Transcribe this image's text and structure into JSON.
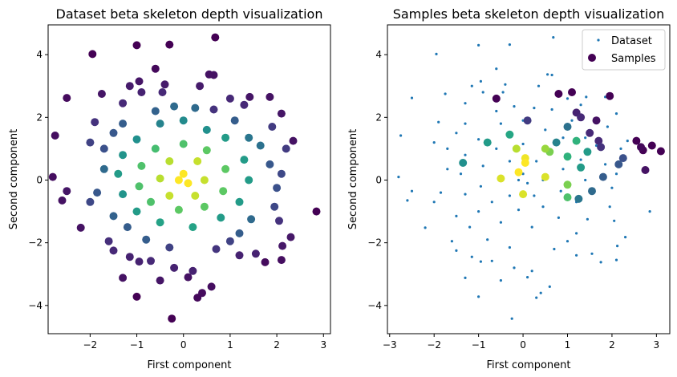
{
  "chart_data": [
    {
      "type": "scatter",
      "title": "Dataset beta skeleton depth visualization",
      "xlabel": "First component",
      "ylabel": "Second component",
      "xlim": [
        -2.9,
        3.15
      ],
      "ylim": [
        -4.9,
        4.95
      ],
      "xticks": [
        "−2",
        "−1",
        "0",
        "1",
        "2",
        "3"
      ],
      "xtick_values": [
        -2,
        -1,
        0,
        1,
        2,
        3
      ],
      "yticks": [
        "−4",
        "−2",
        "0",
        "2",
        "4"
      ],
      "ytick_values": [
        -4,
        -2,
        0,
        2,
        4
      ],
      "colormap": "viridis",
      "colorscale_note": "point color encodes beta skeleton depth (dark purple = low, yellow = high)",
      "series": [
        {
          "points": [
            {
              "x": -1.0,
              "y": 4.3,
              "depth": 0.0
            },
            {
              "x": -1.95,
              "y": 4.02,
              "depth": 0.0
            },
            {
              "x": -0.3,
              "y": 4.32,
              "depth": 0.0
            },
            {
              "x": 0.68,
              "y": 4.55,
              "depth": 0.0
            },
            {
              "x": -0.6,
              "y": 3.55,
              "depth": 0.02
            },
            {
              "x": 0.55,
              "y": 3.37,
              "depth": 0.05
            },
            {
              "x": 0.65,
              "y": 3.35,
              "depth": 0.05
            },
            {
              "x": -2.5,
              "y": 2.62,
              "depth": 0.03
            },
            {
              "x": -1.75,
              "y": 2.75,
              "depth": 0.06
            },
            {
              "x": -2.75,
              "y": 1.42,
              "depth": 0.04
            },
            {
              "x": 1.85,
              "y": 2.65,
              "depth": 0.05
            },
            {
              "x": 1.42,
              "y": 2.65,
              "depth": 0.06
            },
            {
              "x": 2.35,
              "y": 1.25,
              "depth": 0.05
            },
            {
              "x": 2.1,
              "y": 2.12,
              "depth": 0.06
            },
            {
              "x": 2.85,
              "y": -1.0,
              "depth": 0.0
            },
            {
              "x": -2.8,
              "y": 0.1,
              "depth": 0.04
            },
            {
              "x": -2.6,
              "y": -0.65,
              "depth": 0.05
            },
            {
              "x": -2.5,
              "y": -0.35,
              "depth": 0.06
            },
            {
              "x": -2.2,
              "y": -1.52,
              "depth": 0.05
            },
            {
              "x": 2.3,
              "y": -1.82,
              "depth": 0.07
            },
            {
              "x": 2.12,
              "y": -2.1,
              "depth": 0.07
            },
            {
              "x": 1.75,
              "y": -2.62,
              "depth": 0.03
            },
            {
              "x": 2.1,
              "y": -2.55,
              "depth": 0.04
            },
            {
              "x": -1.0,
              "y": -3.72,
              "depth": 0.0
            },
            {
              "x": -0.25,
              "y": -4.42,
              "depth": 0.0
            },
            {
              "x": 0.3,
              "y": -3.75,
              "depth": 0.02
            },
            {
              "x": 0.4,
              "y": -3.6,
              "depth": 0.03
            },
            {
              "x": 0.6,
              "y": -3.4,
              "depth": 0.04
            },
            {
              "x": 0.1,
              "y": -3.1,
              "depth": 0.05
            },
            {
              "x": -0.5,
              "y": -3.2,
              "depth": 0.06
            },
            {
              "x": -1.3,
              "y": -3.12,
              "depth": 0.05
            },
            {
              "x": -1.15,
              "y": -2.45,
              "depth": 0.1
            },
            {
              "x": -0.95,
              "y": -2.6,
              "depth": 0.1
            },
            {
              "x": -0.7,
              "y": -2.58,
              "depth": 0.12
            },
            {
              "x": -0.2,
              "y": -2.8,
              "depth": 0.1
            },
            {
              "x": 0.2,
              "y": -2.9,
              "depth": 0.1
            },
            {
              "x": 1.2,
              "y": -2.4,
              "depth": 0.1
            },
            {
              "x": 1.55,
              "y": -2.35,
              "depth": 0.1
            },
            {
              "x": -1.6,
              "y": -1.95,
              "depth": 0.14
            },
            {
              "x": -1.5,
              "y": -2.25,
              "depth": 0.12
            },
            {
              "x": -0.3,
              "y": -2.15,
              "depth": 0.2
            },
            {
              "x": 0.7,
              "y": -2.2,
              "depth": 0.16
            },
            {
              "x": 1.0,
              "y": -1.95,
              "depth": 0.2
            },
            {
              "x": -1.3,
              "y": 2.45,
              "depth": 0.12
            },
            {
              "x": -0.9,
              "y": 2.8,
              "depth": 0.1
            },
            {
              "x": -0.45,
              "y": 2.8,
              "depth": 0.12
            },
            {
              "x": -0.4,
              "y": 3.05,
              "depth": 0.08
            },
            {
              "x": -0.95,
              "y": 3.15,
              "depth": 0.06
            },
            {
              "x": -1.15,
              "y": 3.0,
              "depth": 0.08
            },
            {
              "x": 0.35,
              "y": 3.0,
              "depth": 0.08
            },
            {
              "x": 0.65,
              "y": 2.25,
              "depth": 0.15
            },
            {
              "x": 1.0,
              "y": 2.6,
              "depth": 0.12
            },
            {
              "x": 1.3,
              "y": 2.4,
              "depth": 0.12
            },
            {
              "x": -1.9,
              "y": 1.85,
              "depth": 0.15
            },
            {
              "x": -2.0,
              "y": 1.2,
              "depth": 0.2
            },
            {
              "x": -1.7,
              "y": 1.0,
              "depth": 0.25
            },
            {
              "x": 1.9,
              "y": 1.7,
              "depth": 0.18
            },
            {
              "x": 2.2,
              "y": 1.0,
              "depth": 0.18
            },
            {
              "x": 1.85,
              "y": 0.5,
              "depth": 0.28
            },
            {
              "x": 2.1,
              "y": 0.2,
              "depth": 0.22
            },
            {
              "x": 2.0,
              "y": -0.25,
              "depth": 0.25
            },
            {
              "x": 1.95,
              "y": -0.85,
              "depth": 0.22
            },
            {
              "x": 2.05,
              "y": -1.3,
              "depth": 0.15
            },
            {
              "x": -2.0,
              "y": -0.7,
              "depth": 0.22
            },
            {
              "x": -1.85,
              "y": -0.4,
              "depth": 0.28
            },
            {
              "x": -1.7,
              "y": 0.35,
              "depth": 0.35
            },
            {
              "x": -1.5,
              "y": 1.5,
              "depth": 0.28
            },
            {
              "x": -1.3,
              "y": 1.8,
              "depth": 0.3
            },
            {
              "x": -0.6,
              "y": 2.2,
              "depth": 0.32
            },
            {
              "x": -0.2,
              "y": 2.35,
              "depth": 0.35
            },
            {
              "x": 0.25,
              "y": 2.3,
              "depth": 0.35
            },
            {
              "x": 1.1,
              "y": 1.9,
              "depth": 0.3
            },
            {
              "x": 1.4,
              "y": 1.35,
              "depth": 0.4
            },
            {
              "x": 1.65,
              "y": 1.1,
              "depth": 0.38
            },
            {
              "x": 1.45,
              "y": -1.25,
              "depth": 0.35
            },
            {
              "x": 1.2,
              "y": -1.7,
              "depth": 0.3
            },
            {
              "x": -1.2,
              "y": -1.5,
              "depth": 0.3
            },
            {
              "x": -1.5,
              "y": -1.15,
              "depth": 0.32
            },
            {
              "x": -0.8,
              "y": -1.9,
              "depth": 0.3
            },
            {
              "x": -0.5,
              "y": 1.8,
              "depth": 0.45
            },
            {
              "x": 0.0,
              "y": 1.9,
              "depth": 0.48
            },
            {
              "x": 0.5,
              "y": 1.6,
              "depth": 0.5
            },
            {
              "x": 0.9,
              "y": 1.35,
              "depth": 0.55
            },
            {
              "x": -1.0,
              "y": 1.3,
              "depth": 0.5
            },
            {
              "x": -1.3,
              "y": 0.8,
              "depth": 0.52
            },
            {
              "x": -1.4,
              "y": 0.2,
              "depth": 0.55
            },
            {
              "x": -1.3,
              "y": -0.45,
              "depth": 0.52
            },
            {
              "x": -1.0,
              "y": -1.0,
              "depth": 0.55
            },
            {
              "x": -0.5,
              "y": -1.35,
              "depth": 0.58
            },
            {
              "x": 0.2,
              "y": -1.5,
              "depth": 0.58
            },
            {
              "x": 0.8,
              "y": -1.2,
              "depth": 0.55
            },
            {
              "x": 1.2,
              "y": -0.7,
              "depth": 0.55
            },
            {
              "x": 1.4,
              "y": 0.0,
              "depth": 0.55
            },
            {
              "x": 1.3,
              "y": 0.65,
              "depth": 0.55
            },
            {
              "x": -0.6,
              "y": 1.0,
              "depth": 0.7
            },
            {
              "x": -0.9,
              "y": 0.45,
              "depth": 0.72
            },
            {
              "x": -0.95,
              "y": -0.2,
              "depth": 0.72
            },
            {
              "x": -0.7,
              "y": -0.7,
              "depth": 0.72
            },
            {
              "x": -0.1,
              "y": -0.95,
              "depth": 0.75
            },
            {
              "x": 0.45,
              "y": -0.85,
              "depth": 0.75
            },
            {
              "x": 0.85,
              "y": -0.35,
              "depth": 0.75
            },
            {
              "x": 0.9,
              "y": 0.35,
              "depth": 0.75
            },
            {
              "x": 0.5,
              "y": 0.95,
              "depth": 0.75
            },
            {
              "x": 0.0,
              "y": 1.15,
              "depth": 0.72
            },
            {
              "x": -0.3,
              "y": 0.6,
              "depth": 0.9
            },
            {
              "x": 0.3,
              "y": 0.6,
              "depth": 0.92
            },
            {
              "x": 0.45,
              "y": 0.0,
              "depth": 0.92
            },
            {
              "x": 0.25,
              "y": -0.5,
              "depth": 0.92
            },
            {
              "x": -0.3,
              "y": -0.5,
              "depth": 0.92
            },
            {
              "x": -0.5,
              "y": 0.05,
              "depth": 0.9
            },
            {
              "x": 0.0,
              "y": 0.2,
              "depth": 1.0
            },
            {
              "x": 0.1,
              "y": -0.1,
              "depth": 1.0
            },
            {
              "x": -0.1,
              "y": 0.0,
              "depth": 1.0
            }
          ]
        }
      ]
    },
    {
      "type": "scatter",
      "title": "Samples beta skeleton depth visualization",
      "xlabel": "First component",
      "ylabel": "Second component",
      "xlim": [
        -3.05,
        3.3
      ],
      "ylim": [
        -4.9,
        4.95
      ],
      "xticks": [
        "−3",
        "−2",
        "−1",
        "0",
        "1",
        "2",
        "3"
      ],
      "xtick_values": [
        -3,
        -2,
        -1,
        0,
        1,
        2,
        3
      ],
      "yticks": [
        "−4",
        "−2",
        "0",
        "2",
        "4"
      ],
      "ytick_values": [
        -4,
        -2,
        0,
        2,
        4
      ],
      "colormap": "viridis",
      "legend": {
        "placement": "top-right",
        "entries": [
          "Dataset",
          "Samples"
        ]
      },
      "dataset_color": "#1f77b4",
      "series": [
        {
          "name": "Dataset",
          "marker": "small-dot",
          "points_note": "same dataset as the left panel, drawn as small blue dots"
        },
        {
          "name": "Samples",
          "marker": "circle",
          "points": [
            {
              "x": -0.6,
              "y": 2.6,
              "depth": 0.0
            },
            {
              "x": 0.8,
              "y": 2.75,
              "depth": 0.0
            },
            {
              "x": 1.1,
              "y": 2.8,
              "depth": 0.0
            },
            {
              "x": 1.95,
              "y": 2.68,
              "depth": 0.0
            },
            {
              "x": 3.1,
              "y": 0.92,
              "depth": 0.0
            },
            {
              "x": 2.9,
              "y": 1.1,
              "depth": 0.0
            },
            {
              "x": 2.7,
              "y": 0.95,
              "depth": 0.0
            },
            {
              "x": 2.55,
              "y": 1.25,
              "depth": 0.0
            },
            {
              "x": 2.65,
              "y": 1.05,
              "depth": 0.02
            },
            {
              "x": 2.75,
              "y": 0.32,
              "depth": 0.05
            },
            {
              "x": 1.65,
              "y": 1.9,
              "depth": 0.05
            },
            {
              "x": 1.2,
              "y": 2.15,
              "depth": 0.1
            },
            {
              "x": 1.3,
              "y": 2.0,
              "depth": 0.12
            },
            {
              "x": 1.5,
              "y": 1.5,
              "depth": 0.12
            },
            {
              "x": 1.7,
              "y": 1.25,
              "depth": 0.12
            },
            {
              "x": 1.75,
              "y": 1.05,
              "depth": 0.15
            },
            {
              "x": 0.1,
              "y": 1.9,
              "depth": 0.18
            },
            {
              "x": 2.25,
              "y": 0.7,
              "depth": 0.25
            },
            {
              "x": 2.15,
              "y": 0.5,
              "depth": 0.28
            },
            {
              "x": 1.8,
              "y": 0.1,
              "depth": 0.3
            },
            {
              "x": 1.55,
              "y": -0.35,
              "depth": 0.35
            },
            {
              "x": 1.25,
              "y": -0.6,
              "depth": 0.4
            },
            {
              "x": 1.0,
              "y": 1.7,
              "depth": 0.38
            },
            {
              "x": 0.75,
              "y": 1.2,
              "depth": 0.45
            },
            {
              "x": -1.35,
              "y": 0.55,
              "depth": 0.5
            },
            {
              "x": -0.8,
              "y": 1.2,
              "depth": 0.55
            },
            {
              "x": -0.3,
              "y": 1.45,
              "depth": 0.6
            },
            {
              "x": 1.3,
              "y": 0.4,
              "depth": 0.55
            },
            {
              "x": 1.0,
              "y": 0.75,
              "depth": 0.65
            },
            {
              "x": 1.45,
              "y": 0.9,
              "depth": 0.55
            },
            {
              "x": 1.0,
              "y": -0.55,
              "depth": 0.72
            },
            {
              "x": 1.0,
              "y": -0.15,
              "depth": 0.8
            },
            {
              "x": 0.6,
              "y": 0.9,
              "depth": 0.8
            },
            {
              "x": 0.5,
              "y": 1.0,
              "depth": 0.85
            },
            {
              "x": 1.2,
              "y": 1.25,
              "depth": 0.65
            },
            {
              "x": -0.15,
              "y": 1.0,
              "depth": 0.9
            },
            {
              "x": 0.0,
              "y": -0.45,
              "depth": 0.95
            },
            {
              "x": 0.5,
              "y": 0.1,
              "depth": 0.95
            },
            {
              "x": -0.5,
              "y": 0.05,
              "depth": 0.95
            },
            {
              "x": -0.1,
              "y": 0.25,
              "depth": 1.0
            },
            {
              "x": 0.05,
              "y": 0.55,
              "depth": 1.0
            },
            {
              "x": 0.05,
              "y": 0.7,
              "depth": 0.98
            }
          ]
        }
      ]
    }
  ]
}
